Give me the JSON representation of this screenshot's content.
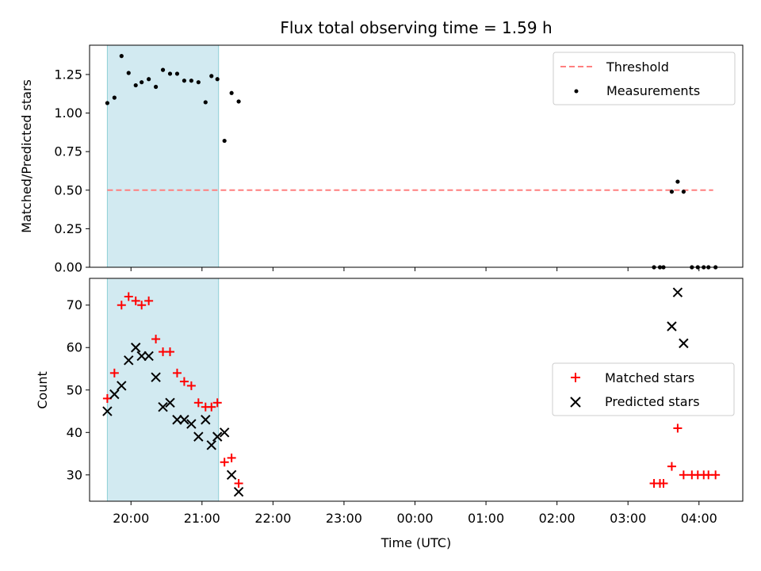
{
  "chart_data": [
    {
      "type": "scatter",
      "title": "Flux total observing time = 1.59 h",
      "xlabel": "",
      "ylabel": "Matched/Predicted stars",
      "ylim": [
        0,
        1.44
      ],
      "xlim": [
        "19:25",
        "04:37"
      ],
      "y_ticks": [
        "0.00",
        "0.25",
        "0.50",
        "0.75",
        "1.00",
        "1.25"
      ],
      "y_tick_values": [
        0,
        0.25,
        0.5,
        0.75,
        1.0,
        1.25
      ],
      "shaded_span": {
        "from": "19:40",
        "to": "21:14",
        "color": "#add8e6"
      },
      "threshold": {
        "name": "Threshold",
        "value": 0.5,
        "from": "19:40",
        "to": "04:12",
        "color": "#ff7f7f",
        "style": "dashed"
      },
      "series": [
        {
          "name": "Measurements",
          "marker": "dot",
          "color": "#000000",
          "points": [
            [
              "19:40",
              1.065
            ],
            [
              "19:46",
              1.1
            ],
            [
              "19:52",
              1.37
            ],
            [
              "19:58",
              1.26
            ],
            [
              "20:04",
              1.18
            ],
            [
              "20:09",
              1.2
            ],
            [
              "20:15",
              1.22
            ],
            [
              "20:21",
              1.17
            ],
            [
              "20:27",
              1.28
            ],
            [
              "20:33",
              1.255
            ],
            [
              "20:39",
              1.255
            ],
            [
              "20:45",
              1.21
            ],
            [
              "20:51",
              1.21
            ],
            [
              "20:57",
              1.2
            ],
            [
              "21:03",
              1.07
            ],
            [
              "21:08",
              1.24
            ],
            [
              "21:13",
              1.22
            ],
            [
              "21:19",
              0.82
            ],
            [
              "21:25",
              1.13
            ],
            [
              "21:31",
              1.075
            ],
            [
              "03:22",
              0.0
            ],
            [
              "03:27",
              0.0
            ],
            [
              "03:30",
              0.0
            ],
            [
              "03:37",
              0.49
            ],
            [
              "03:42",
              0.555
            ],
            [
              "03:47",
              0.49
            ],
            [
              "03:54",
              0.0
            ],
            [
              "03:59",
              0.0
            ],
            [
              "04:04",
              0.0
            ],
            [
              "04:08",
              0.0
            ],
            [
              "04:14",
              0.0
            ]
          ]
        }
      ],
      "legend": [
        "Threshold",
        "Measurements"
      ],
      "legend_position": "upper right"
    },
    {
      "type": "scatter",
      "title": "",
      "xlabel": "Time (UTC)",
      "ylabel": "Count",
      "ylim": [
        23.8,
        76.3
      ],
      "x_ticks": [
        "20:00",
        "21:00",
        "22:00",
        "23:00",
        "00:00",
        "01:00",
        "02:00",
        "03:00",
        "04:00"
      ],
      "y_ticks": [
        "30",
        "40",
        "50",
        "60",
        "70"
      ],
      "y_tick_values": [
        30,
        40,
        50,
        60,
        70
      ],
      "shaded_span": {
        "from": "19:40",
        "to": "21:14",
        "color": "#add8e6"
      },
      "series": [
        {
          "name": "Matched stars",
          "marker": "plus",
          "color": "#ff0000",
          "points": [
            [
              "19:40",
              48
            ],
            [
              "19:46",
              54
            ],
            [
              "19:52",
              70
            ],
            [
              "19:58",
              72
            ],
            [
              "20:04",
              71
            ],
            [
              "20:09",
              70
            ],
            [
              "20:15",
              71
            ],
            [
              "20:21",
              62
            ],
            [
              "20:27",
              59
            ],
            [
              "20:33",
              59
            ],
            [
              "20:39",
              54
            ],
            [
              "20:45",
              52
            ],
            [
              "20:51",
              51
            ],
            [
              "20:57",
              47
            ],
            [
              "21:03",
              46
            ],
            [
              "21:08",
              46
            ],
            [
              "21:13",
              47
            ],
            [
              "21:19",
              33
            ],
            [
              "21:25",
              34
            ],
            [
              "21:31",
              28
            ],
            [
              "03:22",
              28
            ],
            [
              "03:27",
              28
            ],
            [
              "03:30",
              28
            ],
            [
              "03:37",
              32
            ],
            [
              "03:42",
              41
            ],
            [
              "03:47",
              30
            ],
            [
              "03:54",
              30
            ],
            [
              "03:59",
              30
            ],
            [
              "04:04",
              30
            ],
            [
              "04:08",
              30
            ],
            [
              "04:14",
              30
            ]
          ]
        },
        {
          "name": "Predicted stars",
          "marker": "x",
          "color": "#000000",
          "points": [
            [
              "19:40",
              45
            ],
            [
              "19:46",
              49
            ],
            [
              "19:52",
              51
            ],
            [
              "19:58",
              57
            ],
            [
              "20:04",
              60
            ],
            [
              "20:09",
              58
            ],
            [
              "20:15",
              58
            ],
            [
              "20:21",
              53
            ],
            [
              "20:27",
              46
            ],
            [
              "20:33",
              47
            ],
            [
              "20:39",
              43
            ],
            [
              "20:45",
              43
            ],
            [
              "20:51",
              42
            ],
            [
              "20:57",
              39
            ],
            [
              "21:03",
              43
            ],
            [
              "21:08",
              37
            ],
            [
              "21:13",
              39
            ],
            [
              "21:19",
              40
            ],
            [
              "21:25",
              30
            ],
            [
              "21:31",
              26
            ],
            [
              "03:37",
              65
            ],
            [
              "03:42",
              73
            ],
            [
              "03:47",
              61
            ]
          ]
        }
      ],
      "legend": [
        "Matched stars",
        "Predicted stars"
      ],
      "legend_position": "center right"
    }
  ]
}
